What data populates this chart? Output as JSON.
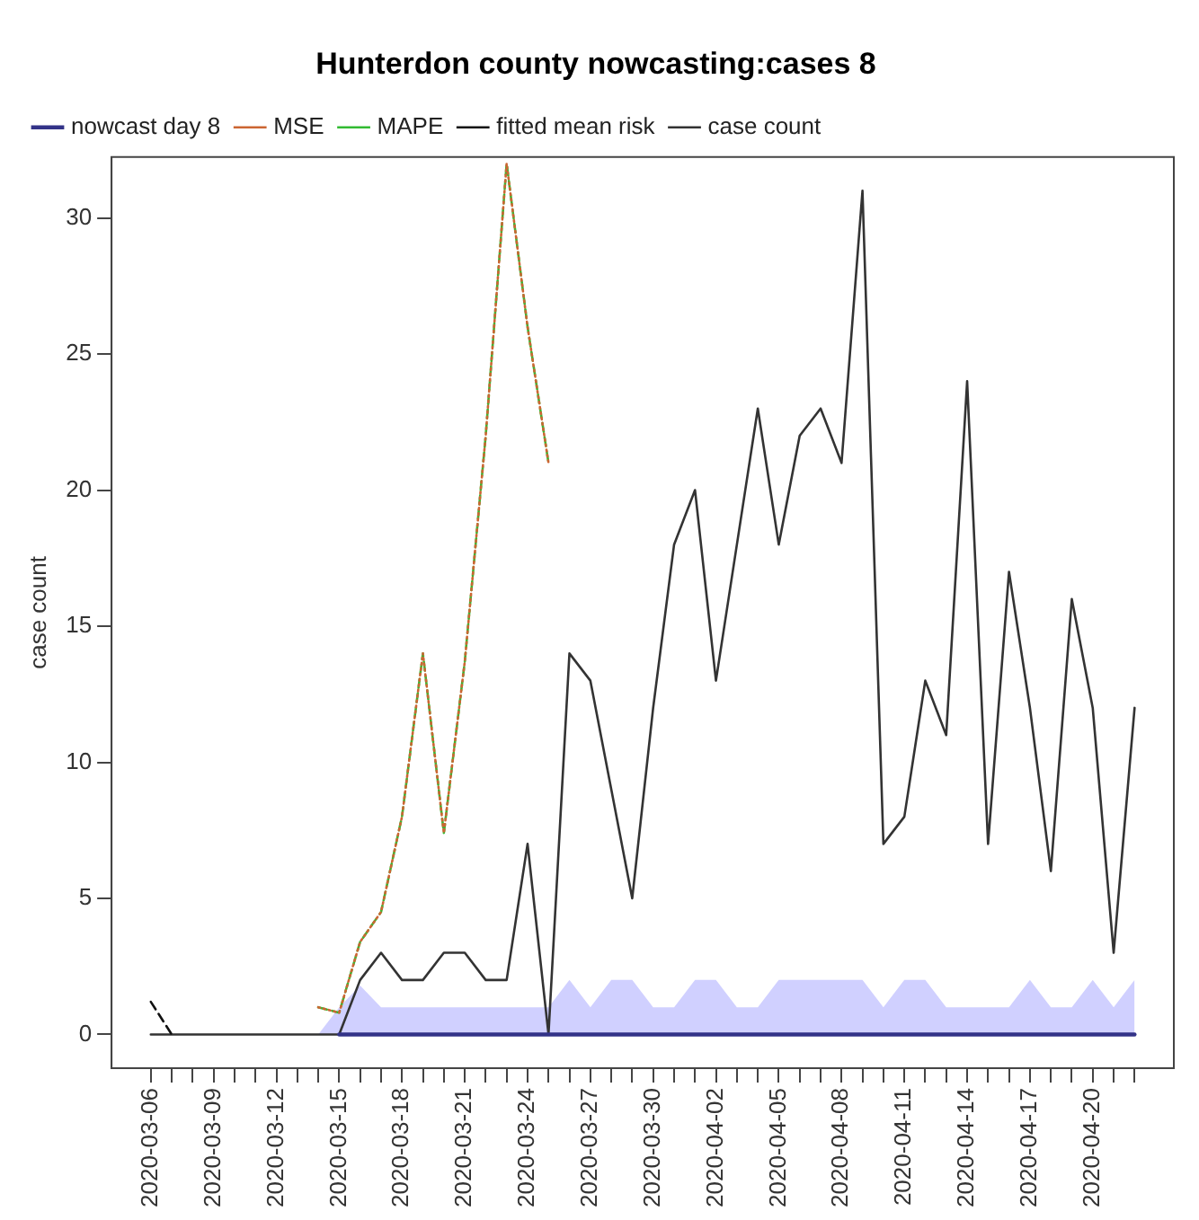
{
  "chart_data": {
    "type": "line",
    "title": "Hunterdon county nowcasting:cases 8",
    "ylabel": "case count",
    "x": [
      "2020-03-06",
      "2020-03-07",
      "2020-03-08",
      "2020-03-09",
      "2020-03-10",
      "2020-03-11",
      "2020-03-12",
      "2020-03-13",
      "2020-03-14",
      "2020-03-15",
      "2020-03-16",
      "2020-03-17",
      "2020-03-18",
      "2020-03-19",
      "2020-03-20",
      "2020-03-21",
      "2020-03-22",
      "2020-03-23",
      "2020-03-24",
      "2020-03-25",
      "2020-03-26",
      "2020-03-27",
      "2020-03-28",
      "2020-03-29",
      "2020-03-30",
      "2020-03-31",
      "2020-04-01",
      "2020-04-02",
      "2020-04-03",
      "2020-04-04",
      "2020-04-05",
      "2020-04-06",
      "2020-04-07",
      "2020-04-08",
      "2020-04-09",
      "2020-04-10",
      "2020-04-11",
      "2020-04-12",
      "2020-04-13",
      "2020-04-14",
      "2020-04-15",
      "2020-04-16",
      "2020-04-17",
      "2020-04-18",
      "2020-04-19",
      "2020-04-20",
      "2020-04-21",
      "2020-04-22"
    ],
    "xlim": [
      "2020-03-04T03:00",
      "2020-04-23T21:00"
    ],
    "xticks": [
      {
        "value": "2020-03-06",
        "label": "2020-03-06"
      },
      {
        "value": "2020-03-07",
        "label": null
      },
      {
        "value": "2020-03-08",
        "label": null
      },
      {
        "value": "2020-03-09",
        "label": "2020-03-09"
      },
      {
        "value": "2020-03-10",
        "label": null
      },
      {
        "value": "2020-03-11",
        "label": null
      },
      {
        "value": "2020-03-12",
        "label": "2020-03-12"
      },
      {
        "value": "2020-03-13",
        "label": null
      },
      {
        "value": "2020-03-14",
        "label": null
      },
      {
        "value": "2020-03-15",
        "label": "2020-03-15"
      },
      {
        "value": "2020-03-16",
        "label": null
      },
      {
        "value": "2020-03-17",
        "label": null
      },
      {
        "value": "2020-03-18",
        "label": "2020-03-18"
      },
      {
        "value": "2020-03-19",
        "label": null
      },
      {
        "value": "2020-03-20",
        "label": null
      },
      {
        "value": "2020-03-21",
        "label": "2020-03-21"
      },
      {
        "value": "2020-03-22",
        "label": null
      },
      {
        "value": "2020-03-23",
        "label": null
      },
      {
        "value": "2020-03-24",
        "label": "2020-03-24"
      },
      {
        "value": "2020-03-25",
        "label": null
      },
      {
        "value": "2020-03-26",
        "label": null
      },
      {
        "value": "2020-03-27",
        "label": "2020-03-27"
      },
      {
        "value": "2020-03-28",
        "label": null
      },
      {
        "value": "2020-03-29",
        "label": null
      },
      {
        "value": "2020-03-30",
        "label": "2020-03-30"
      },
      {
        "value": "2020-03-31",
        "label": null
      },
      {
        "value": "2020-04-01",
        "label": null
      },
      {
        "value": "2020-04-02",
        "label": "2020-04-02"
      },
      {
        "value": "2020-04-03",
        "label": null
      },
      {
        "value": "2020-04-04",
        "label": null
      },
      {
        "value": "2020-04-05",
        "label": "2020-04-05"
      },
      {
        "value": "2020-04-06",
        "label": null
      },
      {
        "value": "2020-04-07",
        "label": null
      },
      {
        "value": "2020-04-08",
        "label": "2020-04-08"
      },
      {
        "value": "2020-04-09",
        "label": null
      },
      {
        "value": "2020-04-10",
        "label": null
      },
      {
        "value": "2020-04-11",
        "label": "2020-04-11"
      },
      {
        "value": "2020-04-12",
        "label": null
      },
      {
        "value": "2020-04-13",
        "label": null
      },
      {
        "value": "2020-04-14",
        "label": "2020-04-14"
      },
      {
        "value": "2020-04-15",
        "label": null
      },
      {
        "value": "2020-04-16",
        "label": null
      },
      {
        "value": "2020-04-17",
        "label": "2020-04-17"
      },
      {
        "value": "2020-04-18",
        "label": null
      },
      {
        "value": "2020-04-19",
        "label": null
      },
      {
        "value": "2020-04-20",
        "label": "2020-04-20"
      },
      {
        "value": "2020-04-21",
        "label": null
      },
      {
        "value": "2020-04-22",
        "label": null
      }
    ],
    "ylim": [
      -1.24,
      32.24
    ],
    "yticks": [
      0,
      5,
      10,
      15,
      20,
      25,
      30
    ],
    "grid": false,
    "legend": "top left",
    "series": [
      {
        "name": "case count",
        "color": "#333333",
        "line_style": "solid",
        "values": [
          0,
          0,
          0,
          0,
          0,
          0,
          0,
          0,
          0,
          0,
          2,
          3,
          2,
          2,
          3,
          3,
          2,
          2,
          7,
          0,
          14,
          13,
          9,
          5,
          12,
          18,
          20,
          13,
          18,
          23,
          18,
          22,
          23,
          21,
          31,
          7,
          8,
          13,
          11,
          24,
          7,
          17,
          12,
          6,
          16,
          12,
          3,
          12
        ]
      },
      {
        "name": "fitted mean risk",
        "color": "#111111",
        "line_style": "dashed",
        "values": [
          1.2,
          0,
          null,
          null,
          null,
          null,
          null,
          null,
          null,
          null,
          null,
          null,
          null,
          null,
          null,
          null,
          null,
          null,
          null,
          null,
          null,
          null,
          null,
          null,
          null,
          null,
          null,
          null,
          null,
          null,
          null,
          null,
          null,
          null,
          null,
          null,
          null,
          null,
          null,
          null,
          null,
          null,
          null,
          null,
          null,
          null,
          null,
          null
        ]
      },
      {
        "name": "MAPE",
        "color": "#33bb33",
        "line_style": "dashed",
        "values": [
          null,
          null,
          null,
          null,
          null,
          null,
          null,
          null,
          1.0,
          0.8,
          3.4,
          4.5,
          8,
          14,
          7.4,
          13.7,
          22,
          32,
          26,
          21,
          null,
          null,
          null,
          null,
          null,
          null,
          null,
          null,
          null,
          null,
          null,
          null,
          null,
          null,
          null,
          null,
          null,
          null,
          null,
          null,
          null,
          null,
          null,
          null,
          null,
          null,
          null,
          null
        ]
      },
      {
        "name": "MSE",
        "color": "#cc6633",
        "line_style": "dotted",
        "values": [
          null,
          null,
          null,
          null,
          null,
          null,
          null,
          null,
          1.0,
          0.8,
          3.4,
          4.5,
          8,
          14,
          7.4,
          13.7,
          22,
          32,
          26,
          21,
          null,
          null,
          null,
          null,
          null,
          null,
          null,
          null,
          null,
          null,
          null,
          null,
          null,
          null,
          null,
          null,
          null,
          null,
          null,
          null,
          null,
          null,
          null,
          null,
          null,
          null,
          null,
          null
        ]
      },
      {
        "name": "nowcast day 8",
        "color": "#333388",
        "line_style": "solid",
        "values": [
          null,
          null,
          null,
          null,
          null,
          null,
          null,
          null,
          null,
          0,
          0,
          0,
          0,
          0,
          0,
          0,
          0,
          0,
          0,
          0,
          0,
          0,
          0,
          0,
          0,
          0,
          0,
          0,
          0,
          0,
          0,
          0,
          0,
          0,
          0,
          0,
          0,
          0,
          0,
          0,
          0,
          0,
          0,
          0,
          0,
          0,
          0,
          0
        ],
        "lower": [
          null,
          null,
          null,
          null,
          null,
          null,
          null,
          null,
          0,
          0,
          0,
          0,
          0,
          0,
          0,
          0,
          0,
          0,
          0,
          0,
          0,
          0,
          0,
          0,
          0,
          0,
          0,
          0,
          0,
          0,
          0,
          0,
          0,
          0,
          0,
          0,
          0,
          0,
          0,
          0,
          0,
          0,
          0,
          0,
          0,
          0,
          0,
          0
        ],
        "upper": [
          null,
          null,
          null,
          null,
          null,
          null,
          null,
          null,
          0,
          1,
          1.8,
          1,
          1,
          1,
          1,
          1,
          1,
          1,
          1,
          1,
          2,
          1,
          2,
          2,
          1,
          1,
          2,
          2,
          1,
          1,
          2,
          2,
          2,
          2,
          2,
          1,
          2,
          2,
          1,
          1,
          1,
          1,
          2,
          1,
          1,
          2,
          1,
          2
        ]
      }
    ]
  }
}
